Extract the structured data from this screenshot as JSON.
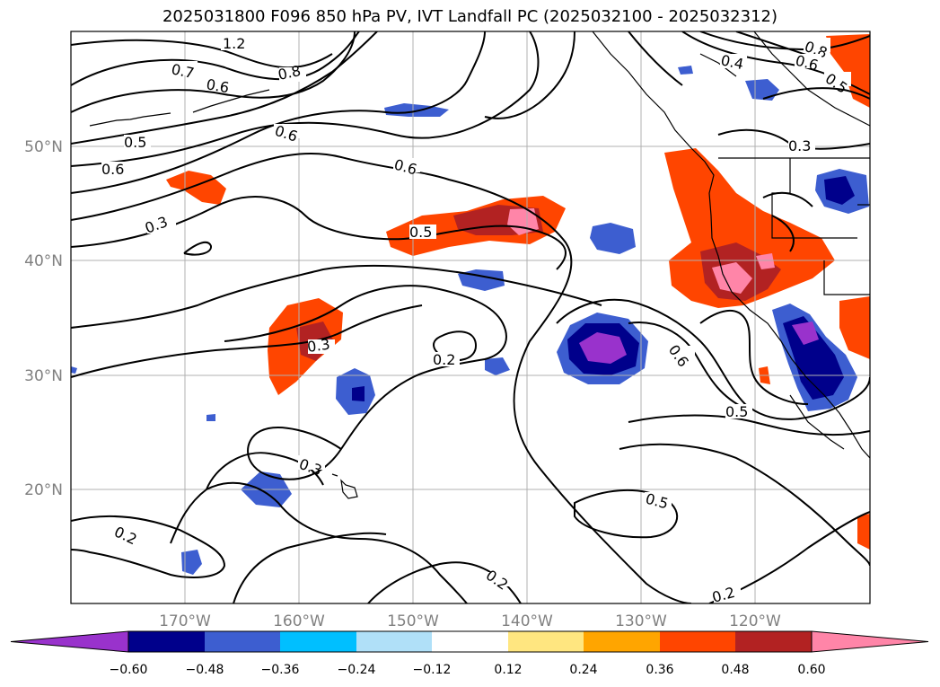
{
  "title": "2025031800 F096 850 hPa PV, IVT Landfall PC (2025032100 - 2025032312)",
  "lat_ticks": [
    "50°N",
    "40°N",
    "30°N",
    "20°N"
  ],
  "lon_ticks": [
    "170°W",
    "160°W",
    "150°W",
    "140°W",
    "130°W",
    "120°W"
  ],
  "contour_labels": [
    "1.2",
    "0.7",
    "0.6",
    "0.8",
    "0.5",
    "0.6",
    "0.6",
    "0.3",
    "0.5",
    "0.3",
    "0.2",
    "0.6",
    "0.6",
    "0.5",
    "0.3",
    "0.2",
    "0.5",
    "0.2",
    "0.2",
    "0.8",
    "0.6",
    "0.5",
    "0.4",
    "0.3"
  ],
  "colorbar": {
    "ticks": [
      "−0.60",
      "−0.48",
      "−0.36",
      "−0.24",
      "−0.12",
      "0.12",
      "0.24",
      "0.36",
      "0.48",
      "0.60"
    ],
    "colors": [
      "#9932cc",
      "#00008b",
      "#3d5ed0",
      "#00bfff",
      "#b0e0f8",
      "#ffffff",
      "#ffe680",
      "#ffa500",
      "#ff4500",
      "#b22222",
      "#ff85a8"
    ]
  }
}
